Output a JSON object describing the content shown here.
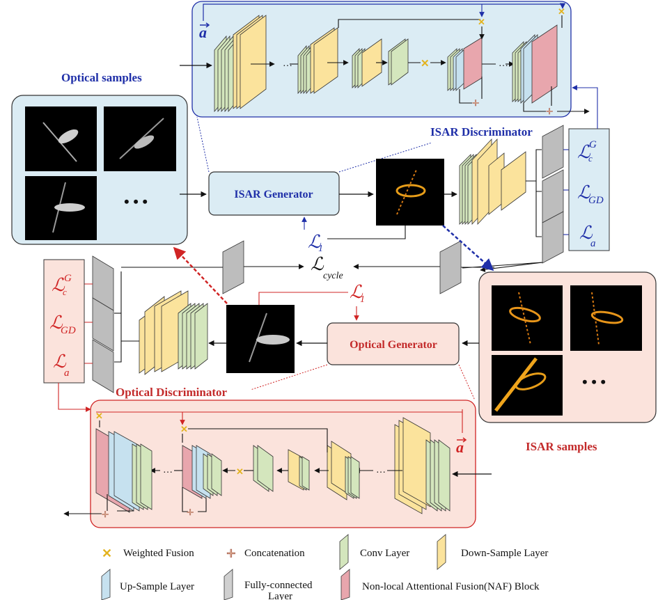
{
  "titles": {
    "optical_samples": "Optical samples",
    "isar_discriminator": "ISAR Discriminator",
    "isar_samples": "ISAR samples",
    "optical_discriminator": "Optical Discriminator"
  },
  "blocks": {
    "isar_generator": "ISAR Generator",
    "optical_generator": "Optical Generator"
  },
  "symbols": {
    "a_vec": "a",
    "ellipsis": "…",
    "big_dots": "• • •"
  },
  "losses": {
    "isar": {
      "c_G": "c",
      "c_sup": "G",
      "GD": "GD",
      "a": "a"
    },
    "optical": {
      "c_G": "c",
      "c_sup": "G",
      "GD": "GD",
      "a": "a"
    },
    "L_char": "ℒ",
    "l1_sub": "1",
    "cycle_sub": "cycle"
  },
  "legend": {
    "weighted_fusion": "Weighted Fusion",
    "concatenation": "Concatenation",
    "conv_layer": "Conv Layer",
    "down_sample_layer": "Down-Sample Layer",
    "up_sample_layer": "Up-Sample Layer",
    "fc_layer_line1": "Fully-connected",
    "fc_layer_line2": "Layer",
    "naf_block": "Non-local Attentional Fusion(NAF) Block"
  },
  "colors": {
    "conv": "#d4e6bd",
    "down": "#fbe39c",
    "up": "#c6e1ef",
    "fc": "#bdbdbd",
    "naf": "#e8a6ad",
    "blue_panel": "#dbecf4",
    "pink_panel": "#fbe3dc",
    "blue_accent": "#1f2fa8",
    "red_accent": "#d02424"
  }
}
